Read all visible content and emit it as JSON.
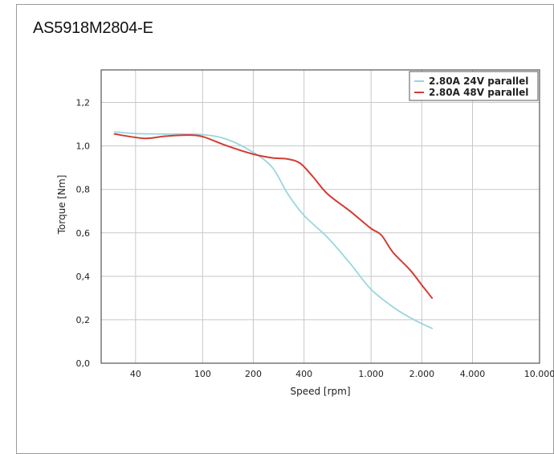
{
  "title": "AS5918M2804-E",
  "chart_data": {
    "type": "line",
    "xscale": "log",
    "xlim": [
      25,
      10000
    ],
    "ylim": [
      0,
      1.35
    ],
    "grid": true,
    "legend_position": "top-right",
    "xlabel": "Speed [rpm]",
    "ylabel": "Torque [Nm]",
    "xticks": [
      {
        "value": 40,
        "label": "40"
      },
      {
        "value": 100,
        "label": "100"
      },
      {
        "value": 200,
        "label": "200"
      },
      {
        "value": 400,
        "label": "400"
      },
      {
        "value": 1000,
        "label": "1.000"
      },
      {
        "value": 2000,
        "label": "2.000"
      },
      {
        "value": 4000,
        "label": "4.000"
      },
      {
        "value": 10000,
        "label": "10.000"
      }
    ],
    "yticks": [
      {
        "value": 0,
        "label": "0,0"
      },
      {
        "value": 0.2,
        "label": "0,2"
      },
      {
        "value": 0.4,
        "label": "0,4"
      },
      {
        "value": 0.6,
        "label": "0,6"
      },
      {
        "value": 0.8,
        "label": "0,8"
      },
      {
        "value": 1.0,
        "label": "1,0"
      },
      {
        "value": 1.2,
        "label": "1,2"
      }
    ],
    "series": [
      {
        "name": "2.80A 24V parallel",
        "color": "#9ad6dd",
        "points": [
          [
            30,
            1.065
          ],
          [
            40,
            1.057
          ],
          [
            60,
            1.055
          ],
          [
            100,
            1.052
          ],
          [
            140,
            1.03
          ],
          [
            200,
            0.97
          ],
          [
            260,
            0.9
          ],
          [
            320,
            0.78
          ],
          [
            400,
            0.68
          ],
          [
            550,
            0.58
          ],
          [
            750,
            0.46
          ],
          [
            1000,
            0.34
          ],
          [
            1400,
            0.25
          ],
          [
            1800,
            0.2
          ],
          [
            2300,
            0.16
          ]
        ]
      },
      {
        "name": "2.80A 48V parallel",
        "color": "#d33b34",
        "points": [
          [
            30,
            1.055
          ],
          [
            45,
            1.035
          ],
          [
            60,
            1.045
          ],
          [
            80,
            1.05
          ],
          [
            100,
            1.043
          ],
          [
            140,
            1.0
          ],
          [
            200,
            0.962
          ],
          [
            260,
            0.945
          ],
          [
            320,
            0.94
          ],
          [
            380,
            0.92
          ],
          [
            450,
            0.86
          ],
          [
            550,
            0.78
          ],
          [
            750,
            0.7
          ],
          [
            1000,
            0.62
          ],
          [
            1150,
            0.59
          ],
          [
            1350,
            0.51
          ],
          [
            1700,
            0.43
          ],
          [
            2000,
            0.36
          ],
          [
            2300,
            0.3
          ]
        ]
      }
    ]
  }
}
